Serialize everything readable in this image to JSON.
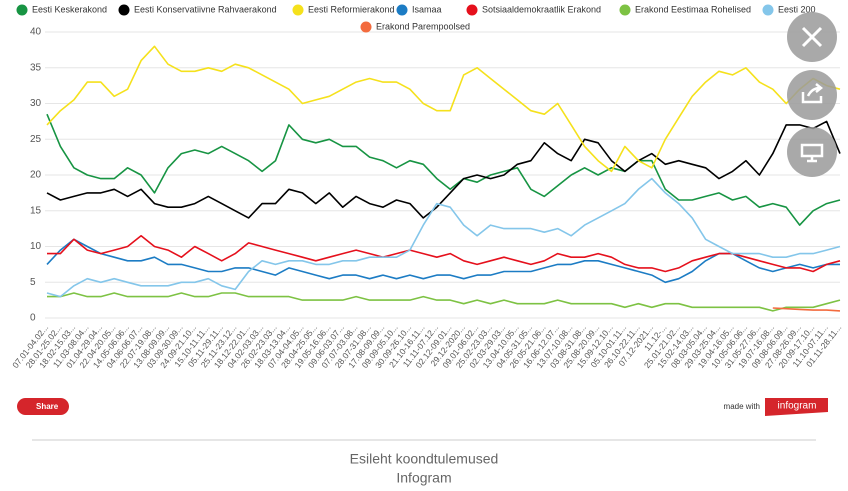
{
  "chart_data": {
    "type": "line",
    "categories": [
      "07.01-04.02...",
      "28.01-25.02...",
      "18.02-15.03...",
      "11.03-08.04...",
      "01.04-29.04...",
      "22.04-20.05...",
      "14.05-06.06...",
      "04.06-06.07...",
      "22.07-19.08...",
      "13.08-09.09...",
      "03.09-30.09...",
      "24.09-21.10...",
      "15.10-11.11...",
      "05.11-29.11...",
      "25.11-23.12...",
      "18.12-22.01...",
      "04.02-03.03...",
      "26.02-23.03...",
      "18.03-13.04...",
      "07.04-04.05...",
      "28.04-25.05...",
      "19.05-16.06...",
      "09.06-03.07...",
      "07.07-03.08...",
      "28.07-31.08...",
      "17.08-09.09...",
      "09.09-05.10...",
      "30.09-26.10...",
      "21.10-16.11...",
      "11.11-07.12...",
      "02.12-09.01...",
      "29.12-2020...",
      "09.01-06.02...",
      "25.02-23.03...",
      "02.03-29.03...",
      "13.04-10.05...",
      "04.05-31.05...",
      "26.05-21.06...",
      "16.06-12.07...",
      "13.07-10.08...",
      "03.08-31.08...",
      "25.08-20.09...",
      "15.09-12.10...",
      "05.10-01.11...",
      "26.10-22.11...",
      "07.12-2021...",
      "11.12-...",
      "25.01-21.02...",
      "15.02-14.03...",
      "08.03-05.04...",
      "29.03-25.04...",
      "19.04-16.05...",
      "10.05-06.06...",
      "31.05-27.06...",
      "19.07-16.08...",
      "09.08-06.09...",
      "27.08-26.09...",
      "20.09-17.10...",
      "11.10-07.11...",
      "01.11-28.11..."
    ],
    "series": [
      {
        "name": "Eesti Keskerakond",
        "color": "#179443",
        "values": [
          28.5,
          24,
          21,
          20,
          19.5,
          19.5,
          21,
          20,
          17.5,
          21,
          23,
          23.5,
          23,
          24,
          23,
          22,
          20.5,
          22,
          27,
          25,
          24.5,
          25,
          24,
          24,
          22.5,
          22,
          21,
          22,
          21.5,
          19.5,
          18,
          19.5,
          19,
          20,
          20.5,
          21,
          18,
          17,
          18.5,
          20,
          21,
          20,
          21,
          20.5,
          22,
          22,
          18,
          16.5,
          16.5,
          17,
          17.5,
          16.5,
          17,
          15.5,
          16,
          15.5,
          13,
          15,
          16,
          16.5
        ]
      },
      {
        "name": "Eesti Konservatiivne Rahvaerakond",
        "color": "#000000",
        "values": [
          17.5,
          16.5,
          17,
          17.5,
          17.5,
          18,
          17,
          18,
          16,
          15.5,
          15.5,
          16,
          17,
          16,
          15,
          14,
          16,
          16,
          18,
          17.5,
          16,
          17.5,
          15.5,
          17,
          16,
          15.5,
          16.5,
          16,
          14,
          15.5,
          17.5,
          19.5,
          20,
          19.5,
          20,
          21.5,
          22,
          24.5,
          23,
          22,
          25,
          24.5,
          22,
          20.5,
          22,
          23,
          21.5,
          22,
          21.5,
          21,
          19.5,
          20.5,
          22,
          20,
          23,
          27,
          27,
          26.5,
          27.5,
          23
        ]
      },
      {
        "name": "Eesti Reformierakond",
        "color": "#f5e11c",
        "values": [
          27,
          29,
          30.5,
          33,
          33,
          31,
          32,
          36,
          38,
          35.5,
          34.5,
          34.5,
          35,
          34.5,
          35.5,
          35,
          34,
          33,
          32,
          30,
          30.5,
          31,
          32,
          33,
          33.5,
          33,
          33,
          32,
          30,
          29,
          29,
          34,
          35,
          33.5,
          32,
          30.5,
          29,
          28.5,
          30,
          27,
          24,
          22,
          20.5,
          24,
          22,
          21,
          25,
          28,
          31,
          33,
          34.5,
          34,
          35,
          33,
          32,
          30,
          32,
          33.5,
          32.5,
          32
        ]
      },
      {
        "name": "Isamaa",
        "color": "#1c7cc4",
        "values": [
          7.5,
          9.5,
          11,
          10,
          9,
          8.5,
          8,
          8,
          8.5,
          7.5,
          7.5,
          7,
          6.5,
          6.5,
          7,
          7,
          6.5,
          6,
          7,
          6.5,
          6,
          5.5,
          6,
          6,
          5.5,
          6,
          5.5,
          6,
          5.5,
          6,
          6,
          5.5,
          6,
          6,
          6.5,
          6.5,
          6.5,
          7,
          7.5,
          7.5,
          8,
          8,
          7.5,
          7,
          6.5,
          6,
          5,
          5.5,
          6.5,
          8,
          9,
          9,
          8,
          7,
          6.5,
          7,
          7.5,
          7,
          7.5,
          7.5
        ]
      },
      {
        "name": "Sotsiaaldemokraatlik Erakond",
        "color": "#e5101c",
        "values": [
          9,
          9,
          11,
          9.5,
          9,
          9.5,
          10,
          11.5,
          10,
          9.5,
          8.5,
          10,
          9,
          8,
          9,
          10.5,
          10,
          9.5,
          9,
          8.5,
          8,
          8.5,
          9,
          9.5,
          9,
          8.5,
          9,
          9.5,
          9,
          8.5,
          9,
          8,
          7.5,
          8,
          8.5,
          8,
          7.5,
          8,
          9,
          8.5,
          8.5,
          9,
          8.5,
          7.5,
          7,
          7,
          6.5,
          7,
          8,
          8.5,
          9,
          9,
          8.5,
          8,
          7.5,
          7,
          7,
          6.5,
          7.5,
          8
        ]
      },
      {
        "name": "Erakond Eestimaa Rohelised",
        "color": "#7dc243",
        "values": [
          3,
          3,
          3.5,
          3,
          3,
          3.5,
          3,
          3,
          3,
          3,
          3.5,
          3,
          3,
          3.5,
          3.5,
          3,
          3,
          3,
          3,
          2.5,
          2.5,
          2.5,
          2.5,
          3,
          2.5,
          2.5,
          2.5,
          2.5,
          3,
          2.5,
          2.5,
          2,
          2.5,
          2,
          2.5,
          2,
          2,
          2,
          2.5,
          2,
          2,
          2,
          2,
          1.5,
          2,
          1.5,
          2,
          2,
          1.5,
          1.5,
          1.5,
          1.5,
          1.5,
          1.5,
          1,
          1.5,
          1.5,
          1.5,
          2,
          2.5
        ]
      },
      {
        "name": "Eesti 200",
        "color": "#84c6ea",
        "values": [
          3.5,
          3,
          4.5,
          5.5,
          5,
          5.5,
          5,
          4.5,
          4.5,
          4.5,
          5,
          5,
          5.5,
          4.5,
          4,
          6.5,
          8,
          7.5,
          8,
          8,
          7.5,
          7.5,
          8,
          8,
          8.5,
          8.5,
          8.5,
          9.5,
          13,
          16,
          15.5,
          13,
          11.5,
          13,
          12.5,
          12.5,
          12.5,
          12,
          12.5,
          11.5,
          13,
          14,
          15,
          16,
          18,
          19.5,
          17.5,
          16,
          14,
          11,
          10,
          9,
          9,
          9,
          8.5,
          8.5,
          9,
          9,
          9.5,
          10
        ]
      },
      {
        "name": "Erakond Parempoolsed",
        "color": "#f36b3e",
        "values": [
          null,
          null,
          null,
          null,
          null,
          null,
          null,
          null,
          null,
          null,
          null,
          null,
          null,
          null,
          null,
          null,
          null,
          null,
          null,
          null,
          null,
          null,
          null,
          null,
          null,
          null,
          null,
          null,
          null,
          null,
          null,
          null,
          null,
          null,
          null,
          null,
          null,
          null,
          null,
          null,
          null,
          null,
          null,
          null,
          null,
          null,
          null,
          null,
          null,
          null,
          null,
          null,
          null,
          null,
          1.4,
          1.3,
          1.2,
          1.1,
          1.1,
          1
        ]
      }
    ],
    "ylim": [
      0,
      40
    ],
    "yticks": [
      0,
      5,
      10,
      15,
      20,
      25,
      30,
      35,
      40
    ],
    "grid": true
  },
  "page": {
    "share": "Share",
    "made_with": "made with",
    "brand": "infogram",
    "footer_title": "Esileht koondtulemused",
    "footer_source": "Infogram"
  }
}
